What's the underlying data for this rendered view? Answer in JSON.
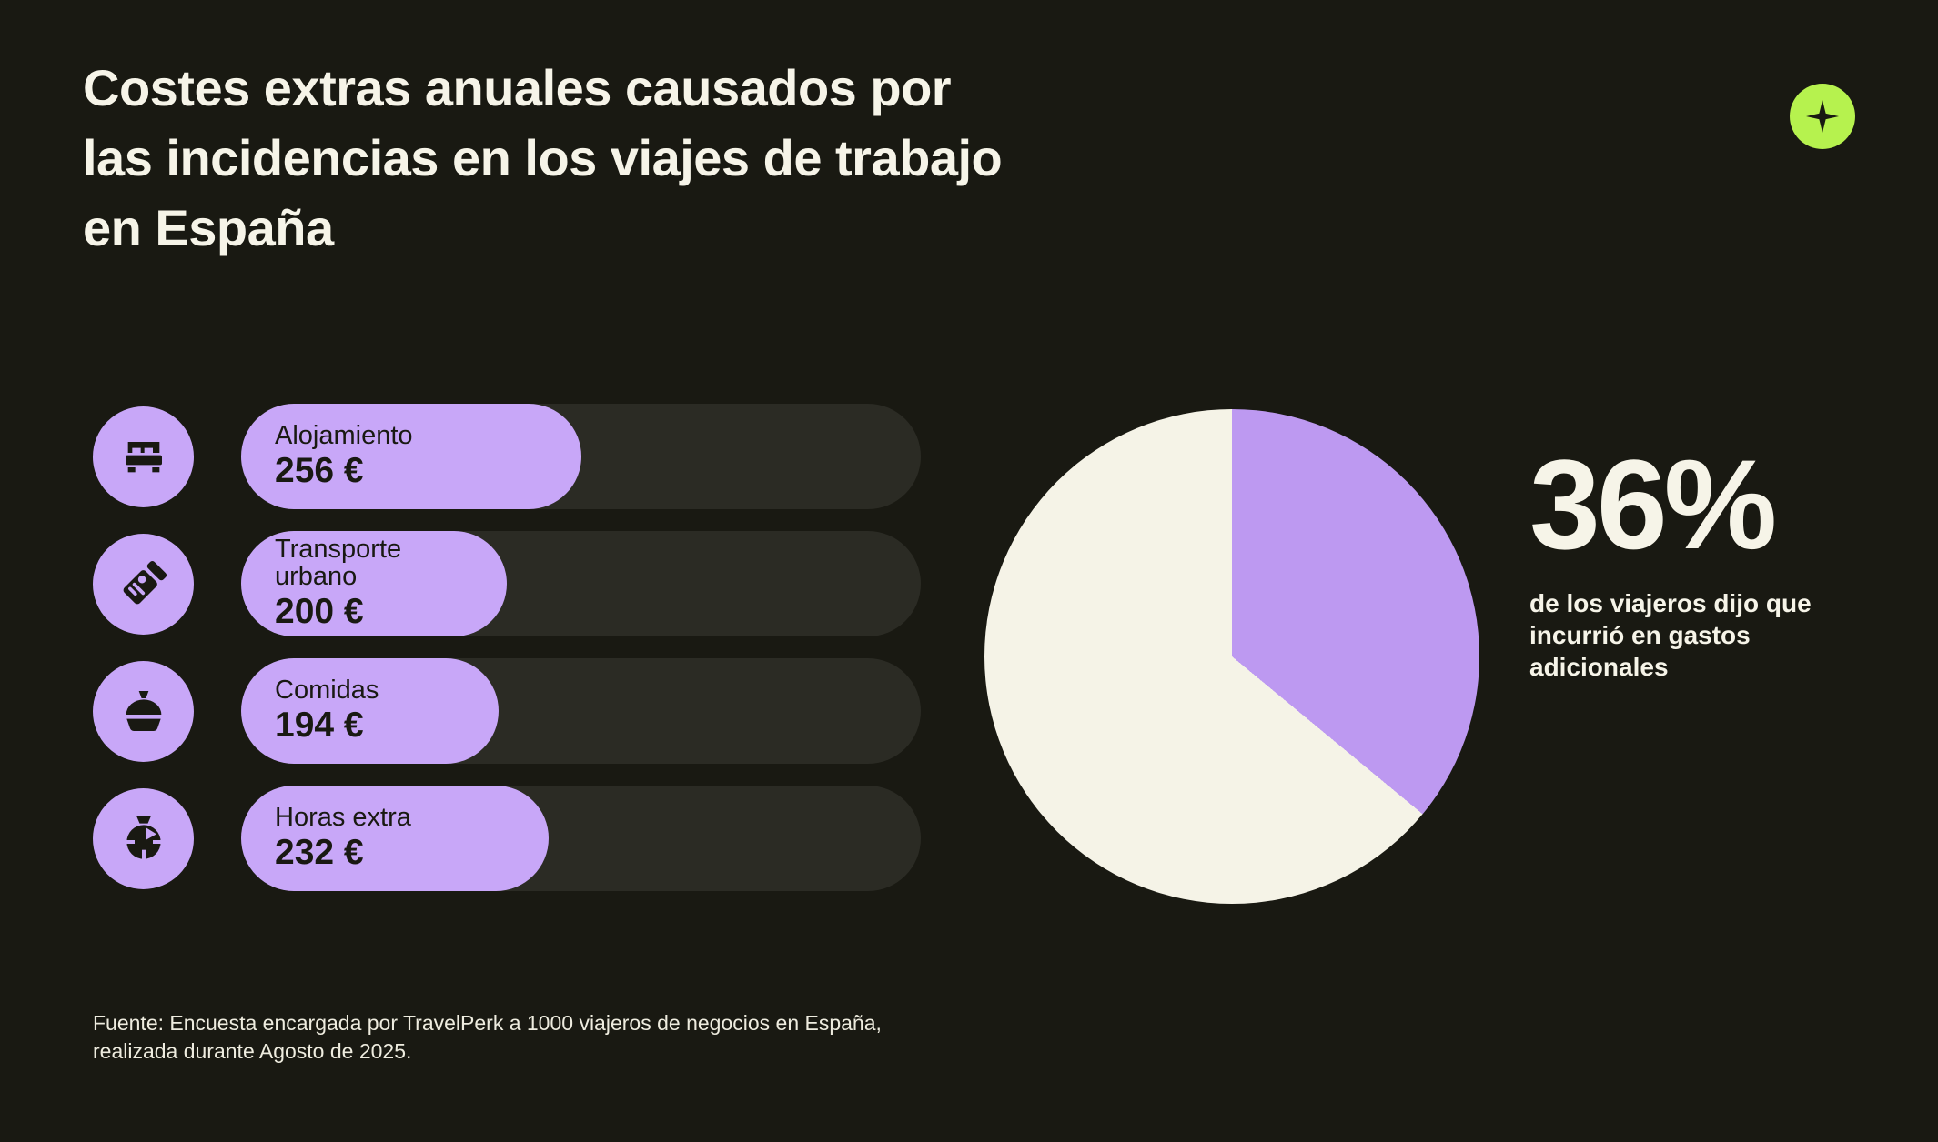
{
  "colors": {
    "background": "#191912",
    "cream": "#f6f4e8",
    "purple_bars": "#c8a7f8",
    "purple_pie": "#bd99f1",
    "bar_track": "#2b2b24",
    "logo_green": "#b6f24e",
    "ink": "#191912"
  },
  "header": {
    "title": "Costes extras anuales causados por\nlas incidencias en los viajes de trabajo\nen España"
  },
  "logo": {
    "icon": "travelperk-plus-star",
    "background": "#b6f24e"
  },
  "stat": {
    "value": "36%",
    "caption": "de los viajeros dijo que\nincurrió en gastos\nadicionales"
  },
  "footer": {
    "text": "Fuente: Encuesta encargada por TravelPerk a 1000 viajeros de negocios en España,\nrealizada durante Agosto de 2025."
  },
  "chart_data": [
    {
      "type": "bar",
      "orientation": "horizontal",
      "title": "Costes extras anuales causados por las incidencias en los viajes de trabajo en España",
      "categories": [
        "Alojamiento",
        "Transporte urbano",
        "Comidas",
        "Horas extra"
      ],
      "categories_display": [
        "Alojamiento",
        "Transporte\nurbano",
        "Comidas",
        "Horas extra"
      ],
      "values": [
        256,
        200,
        194,
        232
      ],
      "unit": "€",
      "value_labels": [
        "256 €",
        "200 €",
        "194 €",
        "232 €"
      ],
      "icons": [
        "bed-icon",
        "ticket-icon",
        "meal-cloche-icon",
        "stopwatch-icon"
      ],
      "xlim": [
        0,
        512
      ],
      "bar_color": "#c8a7f8",
      "track_color": "#2b2b24",
      "grid": false,
      "legend": false
    },
    {
      "type": "pie",
      "values": [
        36,
        64
      ],
      "colors": [
        "#bd99f1",
        "#f5f3e7"
      ],
      "start_angle": "12-o-clock-clockwise",
      "annotation": "36%",
      "caption": "de los viajeros dijo que incurrió en gastos adicionales",
      "legend": false
    }
  ]
}
